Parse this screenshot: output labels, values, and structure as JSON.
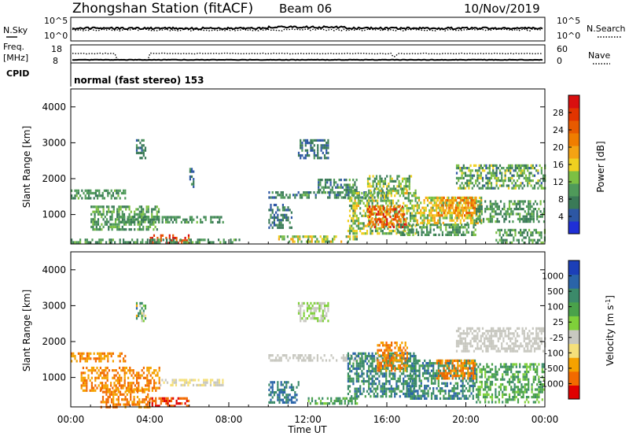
{
  "header": {
    "title": "Zhongshan Station (fitACF)",
    "beam": "Beam 06",
    "date": "10/Nov/2019"
  },
  "colors": {
    "power": [
      "#1f2fd6",
      "#2d57a4",
      "#3a7a57",
      "#4f9a5a",
      "#7cc043",
      "#f0d020",
      "#f4a313",
      "#f07d00",
      "#e85a00",
      "#e23400",
      "#d90f0f"
    ],
    "velocity": [
      "#e00000",
      "#f26a00",
      "#f5a200",
      "#f5e07a",
      "#c8c8c0",
      "#7fd03a",
      "#4aa24a",
      "#3b8a6a",
      "#2a64a8",
      "#1c3fb8"
    ]
  },
  "chart_data": [
    {
      "panel": "noise",
      "type": "line",
      "left_label": "N.Sky",
      "left_ticks": [
        "10^5",
        "10^0"
      ],
      "right_ticks": [
        "10^5",
        "10^0"
      ],
      "right_legend": "N.Search"
    },
    {
      "panel": "frequency",
      "type": "line",
      "left_label_1": "Freq.",
      "left_label_2": "[MHz]",
      "left_ticks": [
        "18",
        "8"
      ],
      "right_ticks": [
        "60",
        "0"
      ],
      "right_legend": "Nave"
    },
    {
      "panel": "cpid",
      "type": "table",
      "label": "CPID",
      "segments": [
        {
          "start_hour": 0,
          "end_hour": 24,
          "text": "normal (fast stereo) 153"
        }
      ]
    },
    {
      "panel": "power",
      "type": "heatmap",
      "ylabel": "Slant Range [km]",
      "ylim": [
        180,
        4500
      ],
      "xlim": [
        0,
        24
      ],
      "yticks": [
        "1000",
        "2000",
        "3000",
        "4000"
      ],
      "colorbar_label": "Power [dB]",
      "colorbar_ticks": [
        "28",
        "24",
        "20",
        "16",
        "12",
        "8",
        "4"
      ],
      "crange": [
        0,
        32
      ],
      "regions": [
        {
          "t0": 0.0,
          "t1": 2.8,
          "r0": 1450,
          "r1": 1700,
          "v0": 7,
          "v1": 12
        },
        {
          "t0": 1.0,
          "t1": 4.5,
          "r0": 600,
          "r1": 1250,
          "v0": 6,
          "v1": 14
        },
        {
          "t0": 2.5,
          "t1": 7.7,
          "r0": 800,
          "r1": 960,
          "v0": 6,
          "v1": 12
        },
        {
          "t0": 4.0,
          "t1": 6.0,
          "r0": 200,
          "r1": 450,
          "v0": 22,
          "v1": 31
        },
        {
          "t0": 0.0,
          "t1": 8.5,
          "r0": 200,
          "r1": 330,
          "v0": 6,
          "v1": 13
        },
        {
          "t0": 3.3,
          "t1": 3.8,
          "r0": 2600,
          "r1": 3100,
          "v0": 5,
          "v1": 10
        },
        {
          "t0": 6.0,
          "t1": 6.2,
          "r0": 1800,
          "r1": 2300,
          "v0": 4,
          "v1": 9
        },
        {
          "t0": 10.0,
          "t1": 16.0,
          "r0": 1450,
          "r1": 1650,
          "v0": 4,
          "v1": 12
        },
        {
          "t0": 10.0,
          "t1": 11.2,
          "r0": 650,
          "r1": 1300,
          "v0": 4,
          "v1": 10
        },
        {
          "t0": 11.5,
          "t1": 13.0,
          "r0": 2600,
          "r1": 3100,
          "v0": 4,
          "v1": 9
        },
        {
          "t0": 10.5,
          "t1": 14.5,
          "r0": 250,
          "r1": 420,
          "v0": 8,
          "v1": 20
        },
        {
          "t0": 12.5,
          "t1": 14.5,
          "r0": 1600,
          "r1": 2000,
          "v0": 4,
          "v1": 12
        },
        {
          "t0": 14.0,
          "t1": 17.5,
          "r0": 500,
          "r1": 1700,
          "v0": 8,
          "v1": 18
        },
        {
          "t0": 15.0,
          "t1": 17.0,
          "r0": 650,
          "r1": 1250,
          "v0": 18,
          "v1": 31
        },
        {
          "t0": 15.0,
          "t1": 17.2,
          "r0": 1700,
          "r1": 2100,
          "v0": 6,
          "v1": 16
        },
        {
          "t0": 16.5,
          "t1": 20.5,
          "r0": 400,
          "r1": 750,
          "v0": 6,
          "v1": 13
        },
        {
          "t0": 17.5,
          "t1": 20.8,
          "r0": 750,
          "r1": 1500,
          "v0": 10,
          "v1": 20
        },
        {
          "t0": 18.5,
          "t1": 20.5,
          "r0": 1000,
          "r1": 1500,
          "v0": 16,
          "v1": 26
        },
        {
          "t0": 19.5,
          "t1": 24.0,
          "r0": 1700,
          "r1": 2400,
          "v0": 5,
          "v1": 16
        },
        {
          "t0": 20.5,
          "t1": 24.0,
          "r0": 800,
          "r1": 1400,
          "v0": 6,
          "v1": 13
        },
        {
          "t0": 21.5,
          "t1": 24.0,
          "r0": 200,
          "r1": 600,
          "v0": 6,
          "v1": 14
        }
      ]
    },
    {
      "panel": "velocity",
      "type": "heatmap",
      "ylabel": "Slant Range [km]",
      "ylim": [
        180,
        4500
      ],
      "xlim": [
        0,
        24
      ],
      "yticks": [
        "1000",
        "2000",
        "3000",
        "4000"
      ],
      "xticks": [
        "00:00",
        "04:00",
        "08:00",
        "12:00",
        "16:00",
        "20:00",
        "00:00"
      ],
      "xlabel": "Time UT",
      "colorbar_label": "Velocity [m s",
      "colorbar_label_sup": "-1",
      "colorbar_label_end": "]",
      "colorbar_ticks": [
        "1000",
        "500",
        "100",
        "25",
        "-25",
        "-100",
        "-500",
        "-1000"
      ],
      "regions": [
        {
          "t0": 0.0,
          "t1": 2.8,
          "r0": 1450,
          "r1": 1700,
          "c0": 1,
          "c1": 2
        },
        {
          "t0": 0.5,
          "t1": 4.5,
          "r0": 600,
          "r1": 1300,
          "c0": 1,
          "c1": 2
        },
        {
          "t0": 1.5,
          "t1": 4.0,
          "r0": 200,
          "r1": 700,
          "c0": 1,
          "c1": 2
        },
        {
          "t0": 4.0,
          "t1": 6.0,
          "r0": 200,
          "r1": 450,
          "c0": 0,
          "c1": 1
        },
        {
          "t0": 4.5,
          "t1": 7.7,
          "r0": 800,
          "r1": 960,
          "c0": 3,
          "c1": 4
        },
        {
          "t0": 3.3,
          "t1": 3.8,
          "r0": 2600,
          "r1": 3100,
          "c0": 1,
          "c1": 8
        },
        {
          "t0": 10.0,
          "t1": 16.5,
          "r0": 1450,
          "r1": 1650,
          "c0": 4,
          "c1": 4
        },
        {
          "t0": 10.0,
          "t1": 11.5,
          "r0": 300,
          "r1": 900,
          "c0": 7,
          "c1": 8
        },
        {
          "t0": 11.5,
          "t1": 13.0,
          "r0": 2600,
          "r1": 3100,
          "c0": 4,
          "c1": 5
        },
        {
          "t0": 12.0,
          "t1": 14.5,
          "r0": 250,
          "r1": 450,
          "c0": 5,
          "c1": 7
        },
        {
          "t0": 14.0,
          "t1": 17.5,
          "r0": 500,
          "r1": 1700,
          "c0": 6,
          "c1": 8
        },
        {
          "t0": 15.5,
          "t1": 17.0,
          "r0": 1200,
          "r1": 2000,
          "c0": 1,
          "c1": 2
        },
        {
          "t0": 17.0,
          "t1": 20.5,
          "r0": 400,
          "r1": 1500,
          "c0": 6,
          "c1": 8
        },
        {
          "t0": 18.5,
          "t1": 20.5,
          "r0": 1000,
          "r1": 1500,
          "c0": 1,
          "c1": 2
        },
        {
          "t0": 19.5,
          "t1": 24.0,
          "r0": 1700,
          "r1": 2400,
          "c0": 4,
          "c1": 4
        },
        {
          "t0": 20.5,
          "t1": 24.0,
          "r0": 300,
          "r1": 1400,
          "c0": 5,
          "c1": 7
        }
      ]
    }
  ]
}
